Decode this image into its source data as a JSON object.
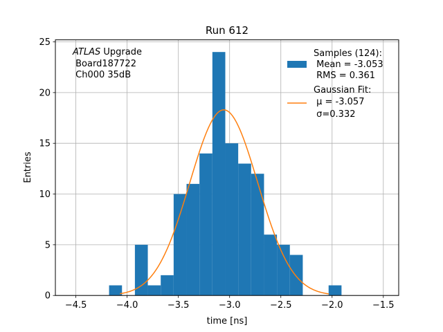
{
  "chart_data": {
    "type": "bar",
    "title": "Run 612",
    "xlabel": "time [ns]",
    "ylabel": "Entries",
    "xlim": [
      -4.7,
      -1.35
    ],
    "ylim": [
      0,
      25.2
    ],
    "grid": true,
    "legend_placement": "top-right",
    "x_ticks": [
      {
        "value": -4.5,
        "label": "−4.5"
      },
      {
        "value": -4.0,
        "label": "−4.0"
      },
      {
        "value": -3.5,
        "label": "−3.5"
      },
      {
        "value": -3.0,
        "label": "−3.0"
      },
      {
        "value": -2.5,
        "label": "−2.5"
      },
      {
        "value": -2.0,
        "label": "−2.0"
      },
      {
        "value": -1.5,
        "label": "−1.5"
      }
    ],
    "y_ticks": [
      {
        "value": 0,
        "label": "0"
      },
      {
        "value": 5,
        "label": "5"
      },
      {
        "value": 10,
        "label": "10"
      },
      {
        "value": 15,
        "label": "15"
      },
      {
        "value": 20,
        "label": "20"
      },
      {
        "value": 25,
        "label": "25"
      }
    ],
    "histogram": {
      "name_lines": [
        "Samples (124):",
        " Mean = -3.053",
        " RMS = 0.361"
      ],
      "color": "#1f77b4",
      "bin_edges": [
        -4.176,
        -4.05,
        -3.924,
        -3.798,
        -3.672,
        -3.546,
        -3.42,
        -3.294,
        -3.168,
        -3.042,
        -2.916,
        -2.79,
        -2.664,
        -2.538,
        -2.412,
        -2.286,
        -2.16,
        -2.034,
        -1.908
      ],
      "counts": [
        1,
        0,
        5,
        1,
        2,
        10,
        11,
        14,
        24,
        15,
        13,
        12,
        6,
        5,
        4,
        0,
        0,
        1
      ]
    },
    "fit": {
      "name_lines": [
        "Gaussian Fit:",
        " μ = -3.057",
        " σ=0.332"
      ],
      "color": "#ff7f0e",
      "mu": -3.057,
      "sigma": 0.332,
      "amplitude": 18.3,
      "x_range": [
        -4.07,
        -2.03
      ]
    },
    "annotation_lines": [
      {
        "italic": "ATLAS",
        "rest": " Upgrade"
      },
      {
        "italic": "",
        "rest": " Board187722"
      },
      {
        "italic": "",
        "rest": " Ch000 35dB"
      }
    ]
  }
}
